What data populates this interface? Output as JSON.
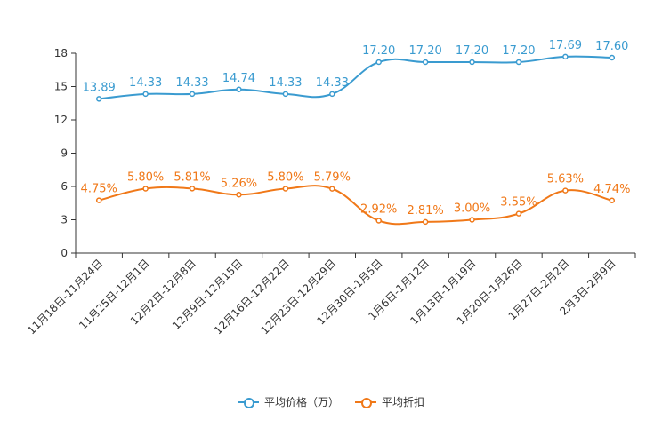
{
  "chart_data": {
    "type": "line",
    "title": "",
    "xlabel": "",
    "ylabel": "",
    "ylim": [
      0,
      18
    ],
    "yticks": [
      0,
      3,
      6,
      9,
      12,
      15,
      18
    ],
    "grid": false,
    "legend_position": "bottom-center",
    "categories": [
      "11月18日-11月24日",
      "11月25日-12月1日",
      "12月2日-12月8日",
      "12月9日-12月15日",
      "12月16日-12月22日",
      "12月23日-12月29日",
      "12月30日-1月5日",
      "1月6日-1月12日",
      "1月13日-1月19日",
      "1月20日-1月26日",
      "1月27日-2月2日",
      "2月3日-2月9日"
    ],
    "series": [
      {
        "name": "平均价格（万）",
        "color": "#3a9bd0",
        "values": [
          13.89,
          14.33,
          14.33,
          14.74,
          14.33,
          14.33,
          17.2,
          17.2,
          17.2,
          17.2,
          17.69,
          17.6
        ],
        "labels": [
          "13.89",
          "14.33",
          "14.33",
          "14.74",
          "14.33",
          "14.33",
          "17.20",
          "17.20",
          "17.20",
          "17.20",
          "17.69",
          "17.60"
        ]
      },
      {
        "name": "平均折扣",
        "color": "#f07818",
        "values": [
          4.75,
          5.8,
          5.81,
          5.26,
          5.8,
          5.79,
          2.92,
          2.81,
          3.0,
          3.55,
          5.63,
          4.74
        ],
        "labels": [
          "4.75%",
          "5.80%",
          "5.81%",
          "5.26%",
          "5.80%",
          "5.79%",
          "2.92%",
          "2.81%",
          "3.00%",
          "3.55%",
          "5.63%",
          "4.74%"
        ]
      }
    ]
  },
  "legend": {
    "items": [
      {
        "label": "平均价格（万）",
        "color": "#3a9bd0"
      },
      {
        "label": "平均折扣",
        "color": "#f07818"
      }
    ]
  }
}
